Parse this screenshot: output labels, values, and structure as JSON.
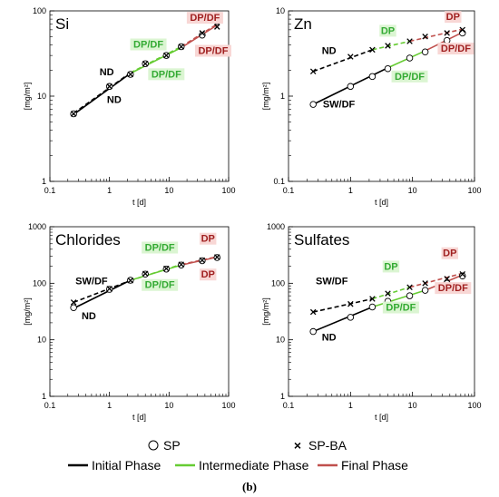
{
  "colors": {
    "initial": "#000000",
    "intermediate": "#66cc33",
    "final": "#c0504d",
    "ann_initial": "#000000",
    "ann_intermediate": "#33aa33",
    "ann_final": "#a02020",
    "hl_intermediate": "#dbf5d2",
    "hl_final": "#f8d7d5"
  },
  "legend": {
    "sp": "SP",
    "spba": "SP-BA",
    "initial": "Initial Phase",
    "intermediate": "Intermediate Phase",
    "final": "Final Phase"
  },
  "caption": "(b)",
  "chart_data": [
    {
      "type": "line",
      "title": "Si",
      "xlabel": "t [d]",
      "ylabel": "[mg/m²]",
      "xscale": "log",
      "yscale": "log",
      "xlim": [
        0.1,
        100
      ],
      "ylim": [
        1,
        100
      ],
      "xticks": [
        "0.1",
        "1",
        "10",
        "100"
      ],
      "yticks": [
        "1",
        "10",
        "100"
      ],
      "series": [
        {
          "name": "SP",
          "marker": "circle",
          "x": [
            0.25,
            1,
            2.25,
            4,
            9,
            16,
            36,
            64
          ],
          "y": [
            6.2,
            13,
            18,
            24,
            30,
            38,
            52,
            75
          ]
        },
        {
          "name": "SP-BA",
          "marker": "cross",
          "x": [
            0.25,
            1,
            2.25,
            4,
            9,
            16,
            36,
            64
          ],
          "y": [
            6.2,
            13,
            18,
            24,
            30,
            38,
            55,
            65
          ]
        }
      ],
      "fits": [
        {
          "phase": "initial",
          "style": "solid",
          "x": [
            0.25,
            2.25
          ],
          "y": [
            6.1,
            18.5
          ]
        },
        {
          "phase": "intermediate",
          "style": "solid",
          "x": [
            2.25,
            16
          ],
          "y": [
            18.5,
            37
          ]
        },
        {
          "phase": "final",
          "style": "solid",
          "x": [
            16,
            64
          ],
          "y": [
            37,
            68
          ]
        },
        {
          "phase": "initial",
          "style": "dashed",
          "x": [
            0.25,
            2.25
          ],
          "y": [
            6.3,
            18.8
          ]
        },
        {
          "phase": "intermediate",
          "style": "dashed",
          "x": [
            2.25,
            16
          ],
          "y": [
            18.8,
            38
          ]
        },
        {
          "phase": "final",
          "style": "dashed",
          "x": [
            16,
            64
          ],
          "y": [
            38,
            70
          ]
        }
      ],
      "annotations": [
        {
          "text": "ND",
          "phase": "initial",
          "x": 0.9,
          "y": 18
        },
        {
          "text": "ND",
          "phase": "initial",
          "x": 1.2,
          "y": 8.5
        },
        {
          "text": "DP/DF",
          "phase": "intermediate",
          "x": 4.5,
          "y": 38
        },
        {
          "text": "DP/DF",
          "phase": "intermediate",
          "x": 9,
          "y": 17
        },
        {
          "text": "DP/DF",
          "phase": "final",
          "x": 40,
          "y": 78
        },
        {
          "text": "DP/DF",
          "phase": "final",
          "x": 55,
          "y": 32
        }
      ]
    },
    {
      "type": "line",
      "title": "Zn",
      "xlabel": "t [d]",
      "ylabel": "[mg/m²]",
      "xscale": "log",
      "yscale": "log",
      "xlim": [
        0.1,
        100
      ],
      "ylim": [
        0.1,
        10
      ],
      "xticks": [
        "0.1",
        "1",
        "10",
        "100"
      ],
      "yticks": [
        "0.1",
        "1",
        "10"
      ],
      "series": [
        {
          "name": "SP",
          "marker": "circle",
          "x": [
            0.25,
            1,
            2.25,
            4,
            9,
            16,
            36,
            64
          ],
          "y": [
            0.8,
            1.3,
            1.7,
            2.1,
            2.8,
            3.3,
            4.5,
            5.5
          ]
        },
        {
          "name": "SP-BA",
          "marker": "cross",
          "x": [
            0.25,
            1,
            2.25,
            4,
            9,
            16,
            36,
            64
          ],
          "y": [
            1.95,
            2.9,
            3.5,
            3.9,
            4.4,
            5.0,
            5.5,
            6.0
          ]
        }
      ],
      "fits": [
        {
          "phase": "initial",
          "style": "solid",
          "x": [
            0.25,
            4
          ],
          "y": [
            0.8,
            2.15
          ]
        },
        {
          "phase": "intermediate",
          "style": "solid",
          "x": [
            4,
            16
          ],
          "y": [
            2.15,
            3.4
          ]
        },
        {
          "phase": "final",
          "style": "solid",
          "x": [
            16,
            64
          ],
          "y": [
            3.4,
            5.6
          ]
        },
        {
          "phase": "initial",
          "style": "dashed",
          "x": [
            0.25,
            2.25
          ],
          "y": [
            1.95,
            3.5
          ]
        },
        {
          "phase": "intermediate",
          "style": "dashed",
          "x": [
            2.25,
            9
          ],
          "y": [
            3.5,
            4.4
          ]
        },
        {
          "phase": "final",
          "style": "dashed",
          "x": [
            9,
            64
          ],
          "y": [
            4.4,
            6.1
          ]
        }
      ],
      "annotations": [
        {
          "text": "ND",
          "phase": "initial",
          "x": 0.45,
          "y": 3.2
        },
        {
          "text": "SW/DF",
          "phase": "initial",
          "x": 0.65,
          "y": 0.75
        },
        {
          "text": "DP",
          "phase": "intermediate",
          "x": 4,
          "y": 5.5
        },
        {
          "text": "DP/DF",
          "phase": "intermediate",
          "x": 9,
          "y": 1.6
        },
        {
          "text": "DP",
          "phase": "final",
          "x": 45,
          "y": 8.0
        },
        {
          "text": "DP/DF",
          "phase": "final",
          "x": 50,
          "y": 3.4
        }
      ]
    },
    {
      "type": "line",
      "title": "Chlorides",
      "xlabel": "t [d]",
      "ylabel": "[mg/m²]",
      "xscale": "log",
      "yscale": "log",
      "xlim": [
        0.1,
        100
      ],
      "ylim": [
        1,
        1000
      ],
      "xticks": [
        "0.1",
        "1",
        "10",
        "100"
      ],
      "yticks": [
        "1",
        "10",
        "100",
        "1000"
      ],
      "series": [
        {
          "name": "SP",
          "marker": "circle",
          "x": [
            0.25,
            1,
            2.25,
            4,
            9,
            16,
            36,
            64
          ],
          "y": [
            37,
            78,
            113,
            145,
            178,
            210,
            250,
            285
          ]
        },
        {
          "name": "SP-BA",
          "marker": "cross",
          "x": [
            0.25,
            1,
            2.25,
            4,
            9,
            16,
            36,
            64
          ],
          "y": [
            46,
            80,
            112,
            148,
            182,
            215,
            255,
            290
          ]
        }
      ],
      "fits": [
        {
          "phase": "initial",
          "style": "solid",
          "x": [
            0.25,
            2.25
          ],
          "y": [
            36,
            113
          ]
        },
        {
          "phase": "intermediate",
          "style": "solid",
          "x": [
            2.25,
            16
          ],
          "y": [
            113,
            210
          ]
        },
        {
          "phase": "final",
          "style": "solid",
          "x": [
            16,
            64
          ],
          "y": [
            210,
            290
          ]
        },
        {
          "phase": "initial",
          "style": "dashed",
          "x": [
            0.25,
            2.25
          ],
          "y": [
            46,
            112
          ]
        },
        {
          "phase": "intermediate",
          "style": "dashed",
          "x": [
            2.25,
            16
          ],
          "y": [
            112,
            215
          ]
        },
        {
          "phase": "final",
          "style": "dashed",
          "x": [
            16,
            64
          ],
          "y": [
            215,
            295
          ]
        }
      ],
      "annotations": [
        {
          "text": "SW/DF",
          "phase": "initial",
          "x": 0.5,
          "y": 100
        },
        {
          "text": "ND",
          "phase": "initial",
          "x": 0.45,
          "y": 24
        },
        {
          "text": "DP/DF",
          "phase": "intermediate",
          "x": 7,
          "y": 390
        },
        {
          "text": "DP/DF",
          "phase": "intermediate",
          "x": 7,
          "y": 85
        },
        {
          "text": "DP",
          "phase": "final",
          "x": 45,
          "y": 560
        },
        {
          "text": "DP",
          "phase": "final",
          "x": 45,
          "y": 130
        }
      ]
    },
    {
      "type": "line",
      "title": "Sulfates",
      "xlabel": "t [d]",
      "ylabel": "[mg/m²]",
      "xscale": "log",
      "yscale": "log",
      "xlim": [
        0.1,
        100
      ],
      "ylim": [
        1,
        1000
      ],
      "xticks": [
        "0.1",
        "1",
        "10",
        "100"
      ],
      "yticks": [
        "1",
        "10",
        "100",
        "1000"
      ],
      "series": [
        {
          "name": "SP",
          "marker": "circle",
          "x": [
            0.25,
            1,
            2.25,
            4,
            9,
            16,
            36,
            64
          ],
          "y": [
            14,
            25,
            38,
            48,
            60,
            75,
            100,
            135
          ]
        },
        {
          "name": "SP-BA",
          "marker": "cross",
          "x": [
            0.25,
            1,
            2.25,
            4,
            9,
            16,
            36,
            64
          ],
          "y": [
            31,
            43,
            53,
            66,
            85,
            100,
            120,
            145
          ]
        }
      ],
      "fits": [
        {
          "phase": "initial",
          "style": "solid",
          "x": [
            0.25,
            2.25
          ],
          "y": [
            14,
            38
          ]
        },
        {
          "phase": "intermediate",
          "style": "solid",
          "x": [
            2.25,
            16
          ],
          "y": [
            38,
            75
          ]
        },
        {
          "phase": "final",
          "style": "solid",
          "x": [
            16,
            64
          ],
          "y": [
            75,
            140
          ]
        },
        {
          "phase": "initial",
          "style": "dashed",
          "x": [
            0.25,
            2.25
          ],
          "y": [
            31,
            53
          ]
        },
        {
          "phase": "intermediate",
          "style": "dashed",
          "x": [
            2.25,
            9
          ],
          "y": [
            53,
            85
          ]
        },
        {
          "phase": "final",
          "style": "dashed",
          "x": [
            9,
            64
          ],
          "y": [
            85,
            150
          ]
        }
      ],
      "annotations": [
        {
          "text": "SW/DF",
          "phase": "initial",
          "x": 0.5,
          "y": 100
        },
        {
          "text": "ND",
          "phase": "initial",
          "x": 0.45,
          "y": 10
        },
        {
          "text": "DP",
          "phase": "intermediate",
          "x": 4.5,
          "y": 180
        },
        {
          "text": "DP/DF",
          "phase": "intermediate",
          "x": 6.5,
          "y": 34
        },
        {
          "text": "DP",
          "phase": "final",
          "x": 40,
          "y": 310
        },
        {
          "text": "DP/DF",
          "phase": "final",
          "x": 45,
          "y": 75
        }
      ]
    }
  ]
}
